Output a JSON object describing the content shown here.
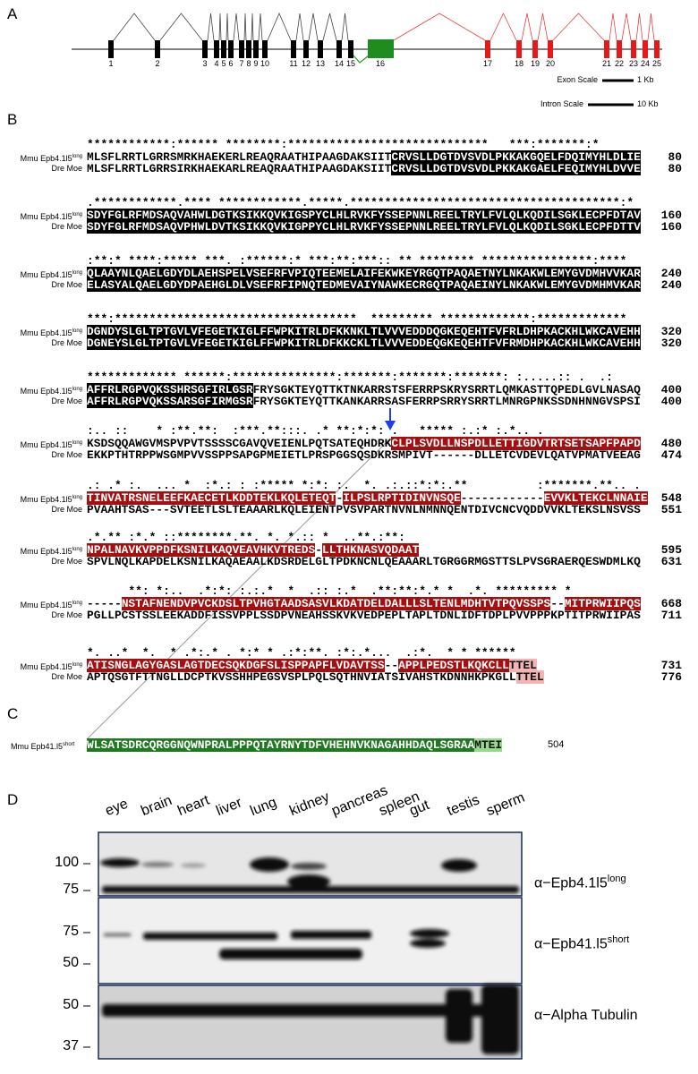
{
  "panel_labels": [
    "A",
    "B",
    "C",
    "D"
  ],
  "gene_structure": {
    "exon_labels": [
      "1",
      "2",
      "3",
      "4",
      "5",
      "6",
      "7",
      "8",
      "9",
      "10",
      "11",
      "12",
      "13",
      "14",
      "15",
      "16",
      "17",
      "18",
      "19",
      "20",
      "21",
      "22",
      "23",
      "24",
      "25"
    ],
    "exon_scale": {
      "label": "Exon Scale",
      "length": "1 Kb"
    },
    "intron_scale": {
      "label": "Intron Scale",
      "length": "10 Kb"
    }
  },
  "alignment": {
    "blocks": [
      {
        "consensus": "************:****** ********:*****************************   ***:*******:*",
        "rows": [
          {
            "name": "Mmu Epb4.1l5",
            "superscript": "long",
            "segments": [
              {
                "text": "MLSFLRRTLGRRSMRKHAEKERLREAQRAATHIPAAGDAKSIIT"
              },
              {
                "text": "CRVSLLDGTDVSVDLPKKAKGQELFDQIMYHLDLIE",
                "hl": "black"
              }
            ],
            "end": 80
          },
          {
            "name": "Dre Moe",
            "segments": [
              {
                "text": "MLSFLRRTLGRRSIRKHAEKARLREAQRAATHIPAAGDAKSIIT"
              },
              {
                "text": "CRVSLLDGTDVSVDLPKKAKGAELFEQIMYHLDVVE",
                "hl": "black"
              }
            ],
            "end": 80
          }
        ]
      },
      {
        "consensus": ".************.**** ************.*****.***************************************:*",
        "rows": [
          {
            "name": "Mmu Epb4.1l5",
            "superscript": "long",
            "segments": [
              {
                "text": "SDYFGLRFMDSAQVAHWLDGTKSIKKQVKIGSPYCLHLRVKFYSSEPNNLREELTRYLFVLQLKQDILSGKLECPFDTAV",
                "hl": "black"
              }
            ],
            "end": 160
          },
          {
            "name": "Dre Moe",
            "segments": [
              {
                "text": "SDYFGLRFMDSAQVPHWLDVTKSIKKQVKIGPPYCLHLRVKFYSSEPNNLREELTRYLFVLQLKQDILSGKLECPFDTTV",
                "hl": "black"
              }
            ],
            "end": 160
          }
        ]
      },
      {
        "consensus": ":**:* ****:***** ***. :******:* ***:**:***:: ** ******** ****************:****",
        "rows": [
          {
            "name": "Mmu Epb4.1l5",
            "superscript": "long",
            "segments": [
              {
                "text": "QLAAYNLQAELGDYDLAEHSPELVSEFRFVPIQTEEMELAIFEKWKEYRGQTPAQAETNYLNKAKWLEMYGVDMHVVKAR",
                "hl": "black"
              }
            ],
            "end": 240
          },
          {
            "name": "Dre Moe",
            "segments": [
              {
                "text": "ELASYALQAELGDYDPAEHGLDLVSEFRFIPNQTEDMEVAIYNAWKECRGQTPAQAEINYLNKAKWLEMYGVDMHMVKAR",
                "hl": "black"
              }
            ],
            "end": 240
          }
        ]
      },
      {
        "consensus": "***:***********************************  ********* *************:*************",
        "rows": [
          {
            "name": "Mmu Epb4.1l5",
            "superscript": "long",
            "segments": [
              {
                "text": "DGNDYSLGLTPTGVLVFEGETKIGLFFWPKITRLDFKKNKLTLVVVEDDDQGKEQEHTFVFRLDHPKACKHLWKCAVEHH",
                "hl": "black"
              }
            ],
            "end": 320
          },
          {
            "name": "Dre Moe",
            "segments": [
              {
                "text": "DGNEYSLGLTPTGVLVFEGETKIGLFFWPKITRLDFKKCKLTLVVVEDDEQGKEQEHTFVFRMDHPKACKHLWKCAVEHH",
                "hl": "black"
              }
            ],
            "end": 320
          }
        ]
      },
      {
        "consensus": "************* ******:***************:*******:*******:*******: :.....:: .  .:",
        "rows": [
          {
            "name": "Mmu Epb4.1l5",
            "superscript": "long",
            "segments": [
              {
                "text": "AFFRLRGPVQKSSHRSGFIRLGSR",
                "hl": "black"
              },
              {
                "text": "FRYSGKTEYQTTKTNKARRSTSFERRPSKRYSRRTLQMKASTTQPEDLGVLNASAQ"
              }
            ],
            "end": 400
          },
          {
            "name": "Dre Moe",
            "segments": [
              {
                "text": "AFFRLRGPVQKSSARSGFIRMGSR",
                "hl": "black"
              },
              {
                "text": "FRYSGKTEYQTTKANKARRSASFERRPSRRYSRRTLMNRGPNKSSDNHNNGVSPSI"
              }
            ],
            "end": 400
          }
        ]
      },
      {
        "consensus": ":.. ::    * :**.**:  :***.**:::. .* **:*:*: .   ***** :.:* :.*.. .",
        "rows": [
          {
            "name": "Mmu Epb4.1l5",
            "superscript": "long",
            "segments": [
              {
                "text": "KSDSQQAWGVMSPVPVTSSSSCGAVQVEIENLPQTSATEQHDRK"
              },
              {
                "text": "CLPLSVDLLNSPDLLETTIGDVTRTSETSAPFPAPD",
                "hl": "red"
              }
            ],
            "end": 480
          },
          {
            "name": "Dre Moe",
            "segments": [
              {
                "text": "EKKPTHTRPPWSGMPVVSSPPSAPGPMEIETLPRSPGGSQSDKRSMPIVT------DLLETCVDEVLQATVPMATVEEAG"
              }
            ],
            "end": 474
          }
        ]
      },
      {
        "consensus": ".: .* :.  ... *  :*.: : :***** *:*: :.  *. .:.::*:*:.**          :*******.**.. .",
        "rows": [
          {
            "name": "Mmu Epb4.1l5",
            "superscript": "long",
            "segments": [
              {
                "text": "TINVATRSNELEEFKAECETLKDDTEKLKQLETEQT",
                "hl": "red"
              },
              {
                "text": "-"
              },
              {
                "text": "ILPSLRPTIDINVNSQE",
                "hl": "red"
              },
              {
                "text": "------------"
              },
              {
                "text": "EVVKLTEKCLNNAIE",
                "hl": "red"
              }
            ],
            "end": 548
          },
          {
            "name": "Dre Moe",
            "segments": [
              {
                "text": "PVAAHTSAS---SVTEETLSLTEAAARLKQLEIENTPVSVPARTNVNLNMNNQENTDIVCNCVQDDVVKLTEKSLNSVSS"
              }
            ],
            "end": 551
          }
        ]
      },
      {
        "consensus": ".*.** :*.* ::********.**. *. *.:: *  ..**.:**:",
        "rows": [
          {
            "name": "Mmu Epb4.1l5",
            "superscript": "long",
            "segments": [
              {
                "text": "NPALNAVKVPPDFKSNILKAQVEAVHKVTREDS",
                "hl": "red"
              },
              {
                "text": "-"
              },
              {
                "text": "LLTHKNASVQDAAT",
                "hl": "red"
              }
            ],
            "end": 595
          },
          {
            "name": "Dre Moe",
            "segments": [
              {
                "text": "SPVLNQLKAPDELKSNILKAQAEAALKDSRDELGLTPDKNCNLQEAAARLTGRGGRMGSTTSLPVSGRAERQESWDMLKQ"
              }
            ],
            "end": 631
          }
        ]
      },
      {
        "consensus": "      **: *:..  .*:*: :.:.*  *  .:: :.*  .**:**:*.* *  .*. ********* *",
        "rows": [
          {
            "name": "Mmu Epb4.1l5",
            "superscript": "long",
            "segments": [
              {
                "text": "-----"
              },
              {
                "text": "NSTAFNENDVPVCKDSLTPVHGTAADSASVLKDATDELDALLLSLTENLMDHTVTPQVSSPS",
                "hl": "red"
              },
              {
                "text": "--"
              },
              {
                "text": "MITPRWIIPQS",
                "hl": "red"
              }
            ],
            "end": 668
          },
          {
            "name": "Dre Moe",
            "segments": [
              {
                "text": "PGLLPCSTSSLEEKADDFISSVPPLSSDPVNEAHSSKVKVEDPEPLTAPLTDNLIDFTDPLPVVPPPKPTITPRWIIPAS"
              }
            ],
            "end": 711
          }
        ]
      },
      {
        "consensus": "*. ..*  *.  * .*:.* . *:* * .:*:**. :*:.*...  .:*.  * * ******",
        "rows": [
          {
            "name": "Mmu Epb4.1l5",
            "superscript": "long",
            "segments": [
              {
                "text": "ATISNGLAGYGASLAGTDECSQKDGFSLISPPAPFLVDAVTSS",
                "hl": "red"
              },
              {
                "text": "--"
              },
              {
                "text": "APPLPEDSTLKQKCLL",
                "hl": "red"
              },
              {
                "text": "TTEL",
                "hl": "pink"
              }
            ],
            "end": 731
          },
          {
            "name": "Dre Moe",
            "segments": [
              {
                "text": "APTQSGTFTTNGLLDCPTKVSSHHPEGSVSPLPQLSQTHNVIATSIVAHSTKDNNHKPKGLL"
              },
              {
                "text": "TTEL",
                "hl": "pink"
              }
            ],
            "end": 776
          }
        ]
      }
    ]
  },
  "short_isoform": {
    "name": "Mmu Epb41.l5",
    "superscript": "short",
    "segments": [
      {
        "text": "WLSATSDRCQRGGNQWNPRALPPPQTAYRNYTDFVHEHNVKNAGAHHDAQLSGRAA",
        "hl": "green"
      },
      {
        "text": "MTEI",
        "hl": "lightgreen"
      }
    ],
    "end": 504
  },
  "western_blot": {
    "tissues": [
      "eye",
      "brain",
      "heart",
      "liver",
      "lung",
      "kidney",
      "pancreas",
      "spleen",
      "gut",
      "testis",
      "sperm"
    ],
    "blots": [
      {
        "markers": [
          100,
          75
        ],
        "antibody": "α−Epb4.1l5",
        "superscript": "long"
      },
      {
        "markers": [
          75,
          50
        ],
        "antibody": "α−Epb41.l5",
        "superscript": "short"
      },
      {
        "markers": [
          50,
          37
        ],
        "antibody": "α−Alpha Tubulin"
      }
    ]
  }
}
